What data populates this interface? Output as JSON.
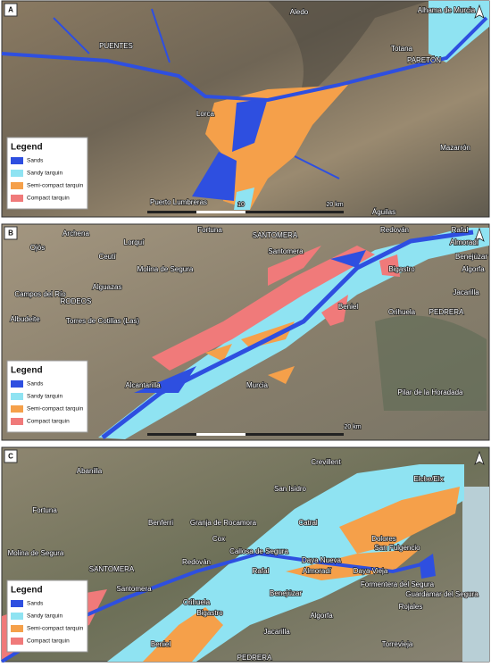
{
  "panels": [
    {
      "letter": "A",
      "places": [
        "Aledo",
        "Alhama de Murcia",
        "Totana",
        "PUENTES",
        "PARETÓN",
        "Lorca",
        "Mazarrón",
        "Puerto Lumbreras",
        "Águilas"
      ],
      "scale": [
        "10",
        "20 km"
      ],
      "legend": {
        "title": "Legend",
        "items": [
          {
            "name": "Sands",
            "color": "#2e4fe0"
          },
          {
            "name": "Sandy tarquin",
            "color": "#8fe3f2"
          },
          {
            "name": "Semi-compact tarquin",
            "color": "#f5a04a"
          },
          {
            "name": "Compact tarquin",
            "color": "#f07a7a"
          }
        ]
      }
    },
    {
      "letter": "B",
      "places": [
        "Archena",
        "Fortuna",
        "SANTOMERA",
        "Redován",
        "Rafal",
        "Almoradí",
        "Ojós",
        "Lorquí",
        "Ceutí",
        "Santomera",
        "Benejúzar",
        "Algorfa",
        "Molina de Segura",
        "Bigastro",
        "Alguazas",
        "Campos del Río",
        "RODEOS",
        "Jacarilla",
        "Albudeite",
        "Torres de Cotillas (Las)",
        "Beniel",
        "Orihuela",
        "PEDRERA",
        "Alcantarilla",
        "Murcia",
        "Pilar de la Horadada"
      ],
      "scale": [
        "20 km"
      ],
      "legend": {
        "title": "Legend",
        "items": [
          {
            "name": "Sands",
            "color": "#2e4fe0"
          },
          {
            "name": "Sandy tarquin",
            "color": "#8fe3f2"
          },
          {
            "name": "Semi-compact tarquin",
            "color": "#f5a04a"
          },
          {
            "name": "Compact tarquin",
            "color": "#f07a7a"
          }
        ]
      }
    },
    {
      "letter": "C",
      "places": [
        "Abanilla",
        "Crevillent",
        "Elche/Elx",
        "Fortuna",
        "San Isidro",
        "Benferri",
        "Granja de Rocamora",
        "Catral",
        "Cox",
        "Dolores",
        "San Fulgencio",
        "Redován",
        "Callosa de Segura",
        "Daya Nueva",
        "SANTOMERA",
        "Rafal",
        "Almoradí",
        "Daya Vieja",
        "Molina de Segura",
        "Formentera del Segura",
        "Guardamar del Segura",
        "Santomera",
        "Orihuela",
        "Benejúzar",
        "Bigastro",
        "Algorfa",
        "Rojales",
        "Beniel",
        "Jacarilla",
        "Torrevieja",
        "PEDRERA"
      ],
      "scale": [],
      "legend": {
        "title": "Legend",
        "items": [
          {
            "name": "Sands",
            "color": "#2e4fe0"
          },
          {
            "name": "Sandy tarquin",
            "color": "#8fe3f2"
          },
          {
            "name": "Semi-compact tarquin",
            "color": "#f5a04a"
          },
          {
            "name": "Compact tarquin",
            "color": "#f07a7a"
          }
        ]
      }
    }
  ]
}
